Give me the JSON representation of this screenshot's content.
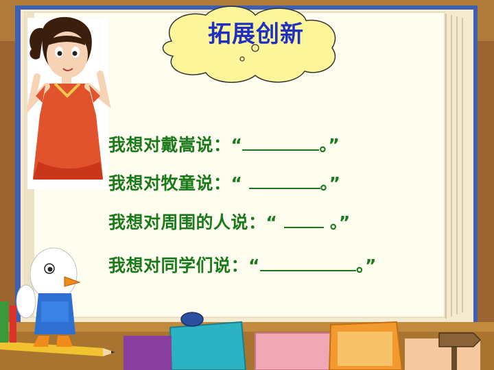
{
  "title": "拓展创新",
  "prompts": [
    {
      "before": "我想对戴嵩说：“",
      "after": "。”"
    },
    {
      "before": "我想对牧童说：“ ",
      "after": "。”"
    },
    {
      "before": "我想对周围的人说：“ ",
      "after": " 。”"
    },
    {
      "before": "我想对同学们说：“",
      "after": "。”"
    }
  ],
  "colors": {
    "title": "#1f2fbf",
    "prompt_text": "#1a7a1a",
    "board": "#fffdf0",
    "bubble": "#fdf59a"
  }
}
